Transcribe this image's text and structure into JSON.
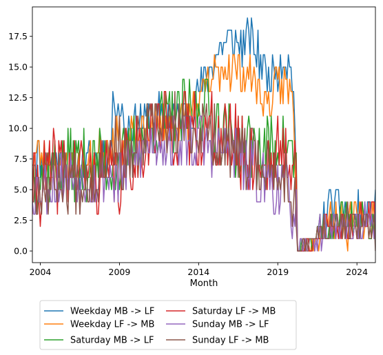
{
  "chart_data": {
    "type": "line",
    "title": "",
    "xlabel": "Month",
    "ylabel": "",
    "xlim": [
      "2003-07",
      "2025-03"
    ],
    "ylim": [
      -0.95,
      19.9
    ],
    "grid": false,
    "legend_position": "below",
    "x_ticks": [
      {
        "month": "2004-01",
        "label": "2004"
      },
      {
        "month": "2009-01",
        "label": "2009"
      },
      {
        "month": "2014-01",
        "label": "2014"
      },
      {
        "month": "2019-01",
        "label": "2019"
      },
      {
        "month": "2024-01",
        "label": "2024"
      }
    ],
    "y_ticks": [
      {
        "value": 0,
        "label": "0.0"
      },
      {
        "value": 2.5,
        "label": "2.5"
      },
      {
        "value": 5,
        "label": "5.0"
      },
      {
        "value": 7.5,
        "label": "7.5"
      },
      {
        "value": 10,
        "label": "10.0"
      },
      {
        "value": 12.5,
        "label": "12.5"
      },
      {
        "value": 15,
        "label": "15.0"
      },
      {
        "value": 17.5,
        "label": "17.5"
      }
    ],
    "series": [
      {
        "name": "Weekday MB -> LF",
        "color": "#1f77b4",
        "anchors": [
          {
            "month": "2003-07",
            "value": 8
          },
          {
            "month": "2005-01",
            "value": 7
          },
          {
            "month": "2007-01",
            "value": 7
          },
          {
            "month": "2008-06",
            "value": 8
          },
          {
            "month": "2008-09",
            "value": 13
          },
          {
            "month": "2009-06",
            "value": 10
          },
          {
            "month": "2011-01",
            "value": 11
          },
          {
            "month": "2013-06",
            "value": 11
          },
          {
            "month": "2014-06",
            "value": 14
          },
          {
            "month": "2015-06",
            "value": 17
          },
          {
            "month": "2016-06",
            "value": 17
          },
          {
            "month": "2017-06",
            "value": 17
          },
          {
            "month": "2018-06",
            "value": 14
          },
          {
            "month": "2019-06",
            "value": 16
          },
          {
            "month": "2020-01",
            "value": 14
          },
          {
            "month": "2020-04",
            "value": 0
          },
          {
            "month": "2021-06",
            "value": 1
          },
          {
            "month": "2022-06",
            "value": 4
          },
          {
            "month": "2023-06",
            "value": 3
          },
          {
            "month": "2025-03",
            "value": 3
          }
        ],
        "noise": 1.1,
        "seed": 11
      },
      {
        "name": "Weekday LF -> MB",
        "color": "#ff7f0e",
        "anchors": [
          {
            "month": "2003-07",
            "value": 8
          },
          {
            "month": "2005-01",
            "value": 7
          },
          {
            "month": "2007-01",
            "value": 7
          },
          {
            "month": "2008-06",
            "value": 9
          },
          {
            "month": "2009-06",
            "value": 9
          },
          {
            "month": "2011-01",
            "value": 10
          },
          {
            "month": "2013-06",
            "value": 11
          },
          {
            "month": "2014-06",
            "value": 13
          },
          {
            "month": "2015-06",
            "value": 15
          },
          {
            "month": "2016-06",
            "value": 15
          },
          {
            "month": "2017-06",
            "value": 14
          },
          {
            "month": "2018-06",
            "value": 12
          },
          {
            "month": "2019-06",
            "value": 14
          },
          {
            "month": "2020-01",
            "value": 12
          },
          {
            "month": "2020-04",
            "value": 0
          },
          {
            "month": "2021-06",
            "value": 1
          },
          {
            "month": "2022-06",
            "value": 3
          },
          {
            "month": "2023-06",
            "value": 2
          },
          {
            "month": "2025-03",
            "value": 3
          }
        ],
        "noise": 1.1,
        "seed": 23
      },
      {
        "name": "Saturday MB -> LF",
        "color": "#2ca02c",
        "anchors": [
          {
            "month": "2003-07",
            "value": 6
          },
          {
            "month": "2005-06",
            "value": 7
          },
          {
            "month": "2007-06",
            "value": 7
          },
          {
            "month": "2009-01",
            "value": 7
          },
          {
            "month": "2011-01",
            "value": 10
          },
          {
            "month": "2013-01",
            "value": 11
          },
          {
            "month": "2014-06",
            "value": 12
          },
          {
            "month": "2016-01",
            "value": 9
          },
          {
            "month": "2018-01",
            "value": 8
          },
          {
            "month": "2019-06",
            "value": 9
          },
          {
            "month": "2020-03",
            "value": 7
          },
          {
            "month": "2020-04",
            "value": 0
          },
          {
            "month": "2021-06",
            "value": 1
          },
          {
            "month": "2022-06",
            "value": 2
          },
          {
            "month": "2023-06",
            "value": 3
          },
          {
            "month": "2025-03",
            "value": 2
          }
        ],
        "noise": 1.8,
        "seed": 37
      },
      {
        "name": "Saturday LF -> MB",
        "color": "#d62728",
        "anchors": [
          {
            "month": "2003-07",
            "value": 5
          },
          {
            "month": "2005-06",
            "value": 7
          },
          {
            "month": "2007-06",
            "value": 6
          },
          {
            "month": "2009-01",
            "value": 6
          },
          {
            "month": "2011-01",
            "value": 10
          },
          {
            "month": "2013-01",
            "value": 10
          },
          {
            "month": "2014-06",
            "value": 10
          },
          {
            "month": "2016-01",
            "value": 9
          },
          {
            "month": "2018-01",
            "value": 7
          },
          {
            "month": "2019-06",
            "value": 8
          },
          {
            "month": "2020-03",
            "value": 7
          },
          {
            "month": "2020-04",
            "value": 0
          },
          {
            "month": "2021-06",
            "value": 1
          },
          {
            "month": "2022-06",
            "value": 2
          },
          {
            "month": "2023-06",
            "value": 2
          },
          {
            "month": "2025-03",
            "value": 3
          }
        ],
        "noise": 2.0,
        "seed": 41
      },
      {
        "name": "Sunday MB -> LF",
        "color": "#9467bd",
        "anchors": [
          {
            "month": "2003-07",
            "value": 5
          },
          {
            "month": "2005-06",
            "value": 6
          },
          {
            "month": "2007-06",
            "value": 6
          },
          {
            "month": "2009-01",
            "value": 6
          },
          {
            "month": "2011-01",
            "value": 9
          },
          {
            "month": "2013-01",
            "value": 9
          },
          {
            "month": "2014-06",
            "value": 9
          },
          {
            "month": "2016-01",
            "value": 8
          },
          {
            "month": "2018-01",
            "value": 6
          },
          {
            "month": "2019-06",
            "value": 5
          },
          {
            "month": "2020-03",
            "value": 3
          },
          {
            "month": "2020-04",
            "value": 0
          },
          {
            "month": "2021-06",
            "value": 1
          },
          {
            "month": "2022-06",
            "value": 2
          },
          {
            "month": "2023-06",
            "value": 2
          },
          {
            "month": "2025-03",
            "value": 2
          }
        ],
        "noise": 1.6,
        "seed": 53
      },
      {
        "name": "Sunday LF -> MB",
        "color": "#8c564b",
        "anchors": [
          {
            "month": "2003-07",
            "value": 5
          },
          {
            "month": "2005-06",
            "value": 6
          },
          {
            "month": "2007-06",
            "value": 6
          },
          {
            "month": "2008-09",
            "value": 9
          },
          {
            "month": "2009-06",
            "value": 7
          },
          {
            "month": "2011-01",
            "value": 10
          },
          {
            "month": "2013-01",
            "value": 10
          },
          {
            "month": "2014-06",
            "value": 10
          },
          {
            "month": "2016-01",
            "value": 8
          },
          {
            "month": "2018-01",
            "value": 7
          },
          {
            "month": "2019-06",
            "value": 6
          },
          {
            "month": "2020-03",
            "value": 4
          },
          {
            "month": "2020-04",
            "value": 0
          },
          {
            "month": "2021-06",
            "value": 1
          },
          {
            "month": "2022-06",
            "value": 2
          },
          {
            "month": "2023-06",
            "value": 2
          },
          {
            "month": "2025-03",
            "value": 2
          }
        ],
        "noise": 1.6,
        "seed": 67
      }
    ]
  }
}
